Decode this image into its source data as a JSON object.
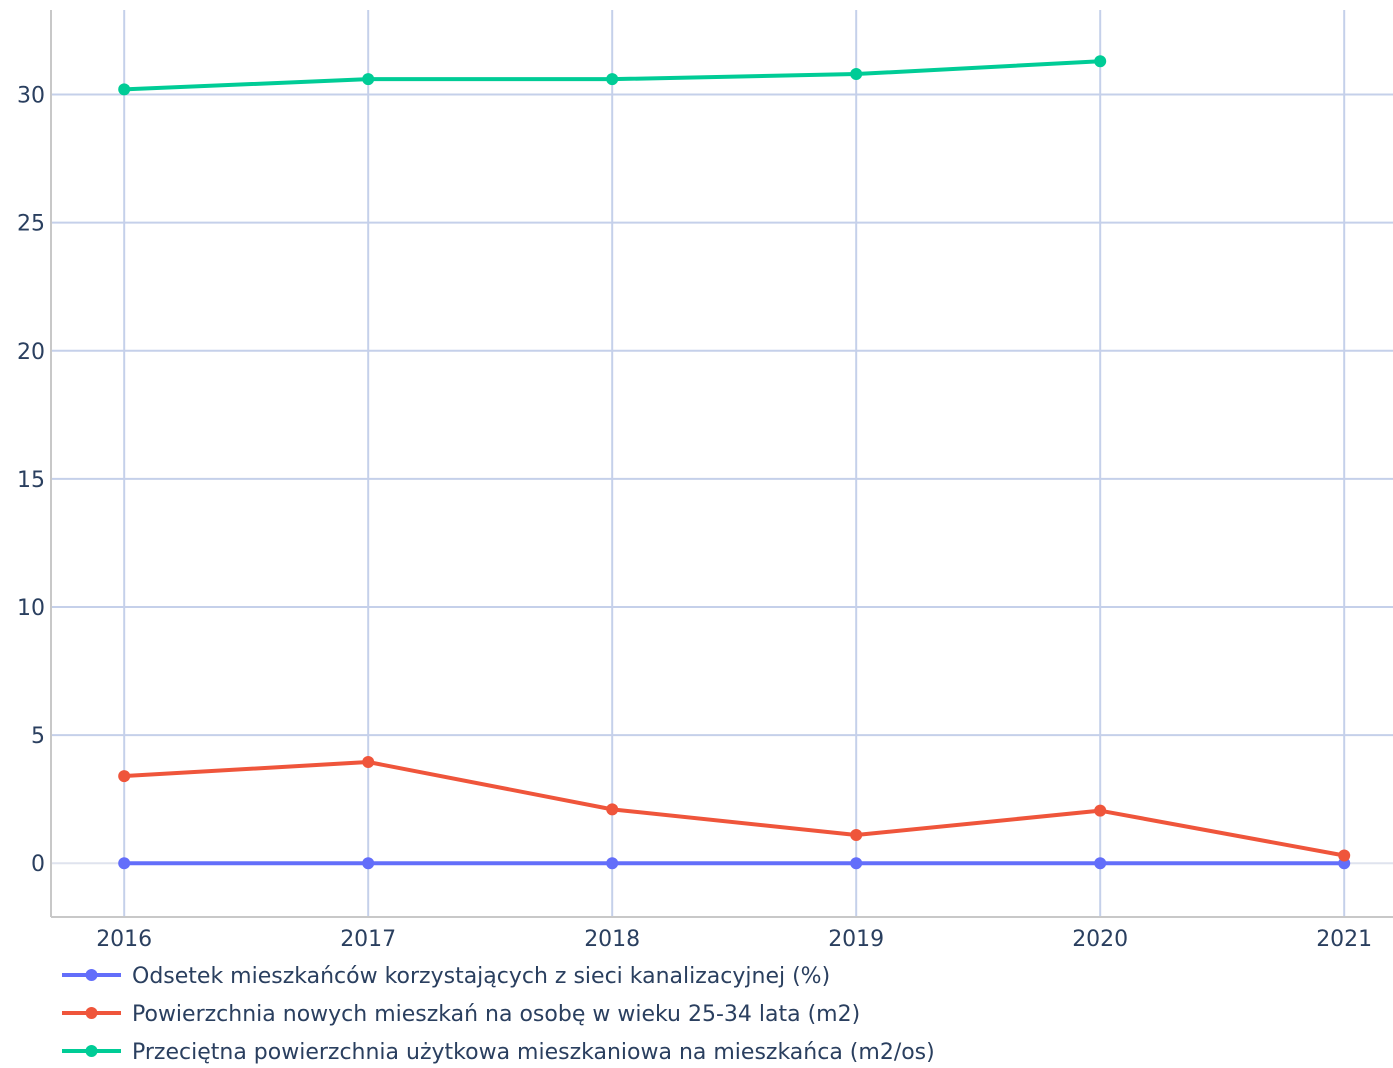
{
  "chart_data": {
    "type": "line",
    "title": "",
    "xlabel": "",
    "ylabel": "",
    "x": [
      2016,
      2017,
      2018,
      2019,
      2020,
      2021
    ],
    "xlim": [
      2015.7,
      2021.2
    ],
    "ylim": [
      -2.1,
      33.3
    ],
    "yticks": [
      0,
      5,
      10,
      15,
      20,
      25,
      30
    ],
    "grid": true,
    "legend_position": "bottom-left",
    "series": [
      {
        "name": "Odsetek mieszkańców korzystających z sieci kanalizacyjnej (%)",
        "color": "#636efa",
        "values": [
          0,
          0,
          0,
          0,
          0,
          0
        ]
      },
      {
        "name": "Powierzchnia nowych mieszkań na osobę w wieku 25-34 lata (m2)",
        "color": "#ef553b",
        "values": [
          3.4,
          3.95,
          2.1,
          1.1,
          2.05,
          0.3
        ]
      },
      {
        "name": "Przeciętna powierzchnia użytkowa mieszkaniowa na mieszkańca (m2/os)",
        "color": "#00cc96",
        "values": [
          30.2,
          30.6,
          30.6,
          30.8,
          31.3,
          null
        ]
      }
    ]
  }
}
